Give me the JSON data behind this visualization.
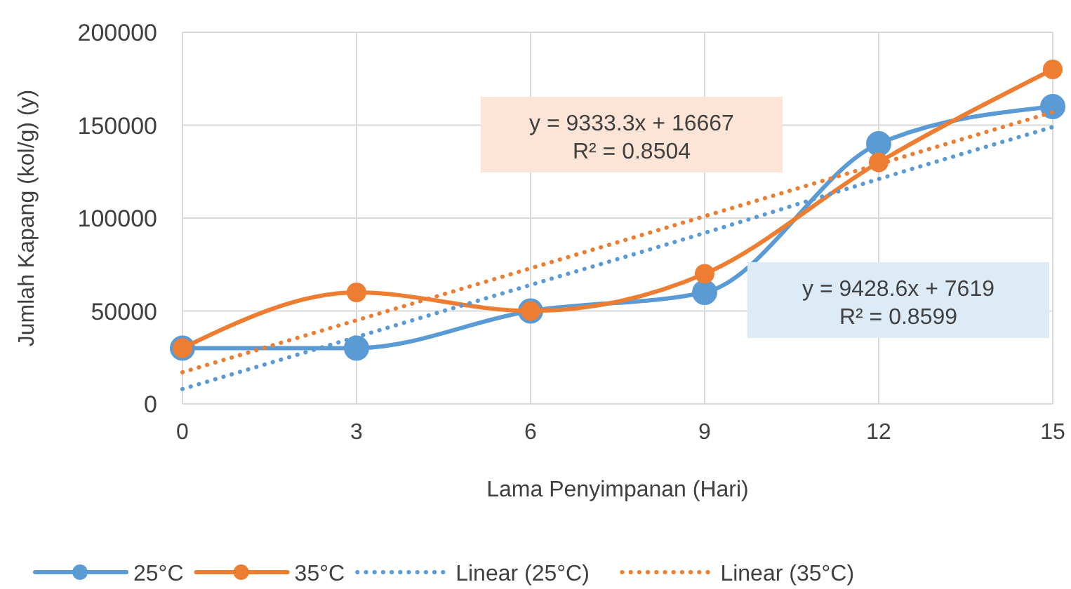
{
  "chart_data": {
    "type": "line",
    "xlabel": "Lama Penyimpanan (Hari)",
    "ylabel": "Jumlah Kapang (kol/g) (y)",
    "x": [
      0,
      3,
      6,
      9,
      12,
      15
    ],
    "xlim": [
      0,
      15
    ],
    "xticks": [
      0,
      3,
      6,
      9,
      12,
      15
    ],
    "ylim": [
      0,
      200000
    ],
    "yticks": [
      0,
      50000,
      100000,
      150000,
      200000
    ],
    "grid": true,
    "legend": "bottom",
    "series": [
      {
        "name": "25°C",
        "color": "#5b9bd5",
        "values": [
          30000,
          30000,
          50000,
          60000,
          140000,
          160000
        ],
        "marker": "circle",
        "line_style": "solid"
      },
      {
        "name": "35°C",
        "color": "#ed7d31",
        "values": [
          30000,
          60000,
          50000,
          70000,
          130000,
          180000
        ],
        "marker": "circle",
        "line_style": "solid"
      },
      {
        "name": "Linear (25°C)",
        "color": "#5b9bd5",
        "values": [
          8000,
          36000,
          64000,
          92000,
          121000,
          149000
        ],
        "marker": "none",
        "line_style": "dotted"
      },
      {
        "name": "Linear (35°C)",
        "color": "#ed7d31",
        "values": [
          17000,
          45000,
          73000,
          101000,
          129000,
          157000
        ],
        "marker": "none",
        "line_style": "dotted"
      }
    ],
    "annotations": [
      "y = 9333.3x + 16667\nR² = 0.8504",
      "y = 9428.6x + 7619\nR² = 0.8599"
    ]
  }
}
